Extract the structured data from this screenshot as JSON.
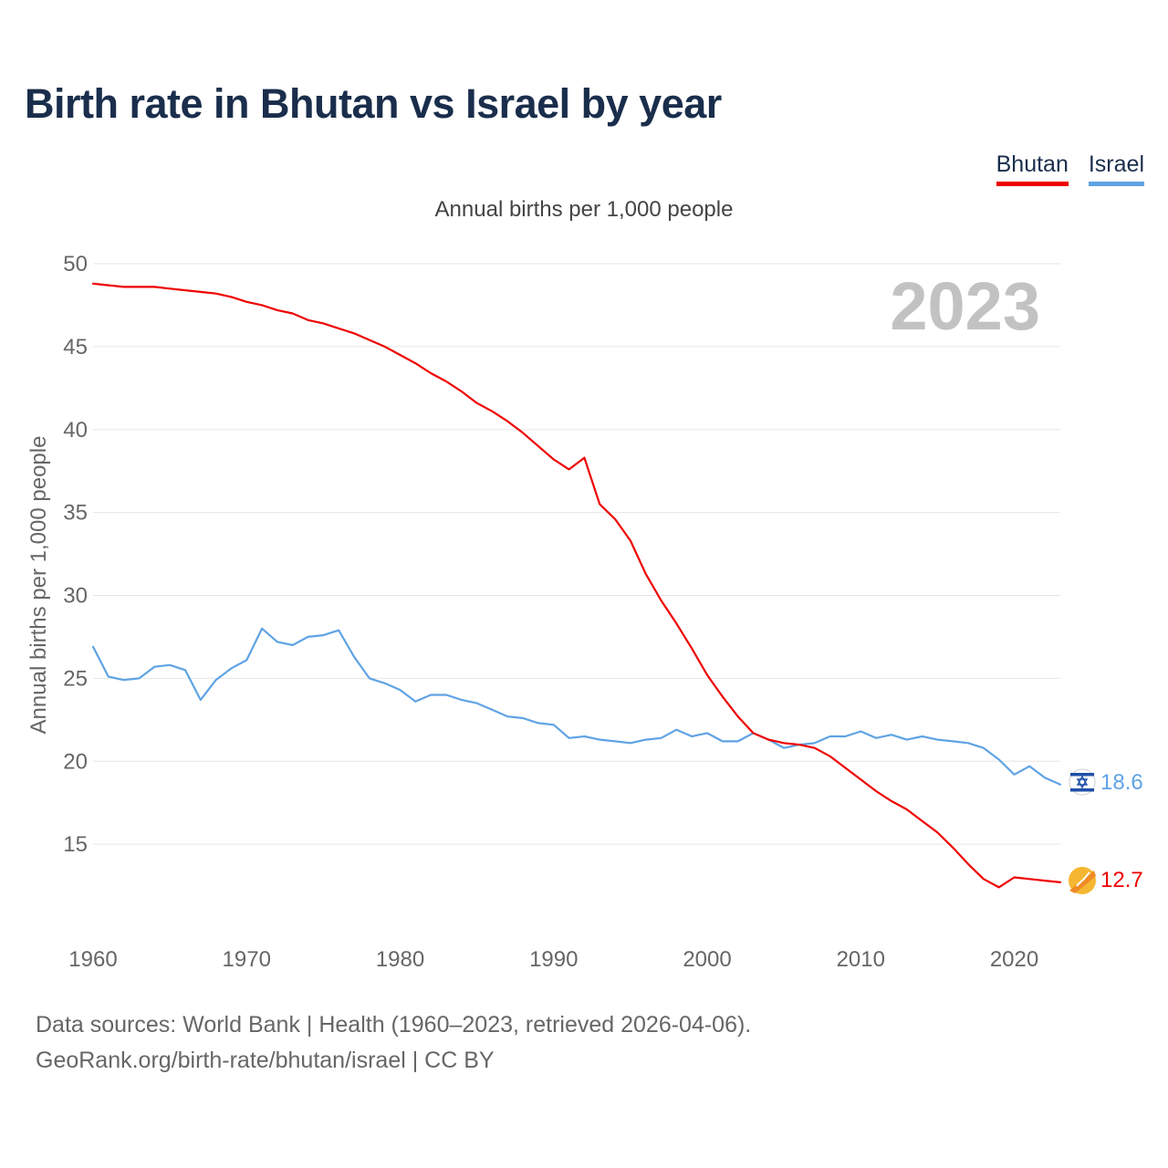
{
  "title": "Birth rate in Bhutan vs Israel by year",
  "subtitle": "Annual births per 1,000 people",
  "legend": {
    "bhutan_label": "Bhutan",
    "israel_label": "Israel"
  },
  "year_display": "2023",
  "end_labels": {
    "bhutan": "12.7",
    "israel": "18.6"
  },
  "footer": {
    "line1": "Data sources: World Bank | Health (1960–2023, retrieved 2026-04-06).",
    "line2": "GeoRank.org/birth-rate/bhutan/israel | CC BY"
  },
  "colors": {
    "bhutan": "#ee0000",
    "israel": "#5fa3e4",
    "title": "#1a2e4c",
    "grid": "#e6e6e6"
  },
  "icons": {
    "bhutan": "bhutan-flag-icon",
    "israel": "israel-flag-icon"
  },
  "chart_data": {
    "type": "line",
    "title": "Birth rate in Bhutan vs Israel by year",
    "subtitle": "Annual births per 1,000 people",
    "xlabel": "",
    "ylabel": "Annual births per 1,000 people",
    "xlim": [
      1960,
      2023
    ],
    "ylim": [
      10,
      50
    ],
    "y_ticks": [
      15,
      20,
      25,
      30,
      35,
      40,
      45,
      50
    ],
    "x_ticks": [
      1960,
      1970,
      1980,
      1990,
      2000,
      2010,
      2020
    ],
    "grid": true,
    "legend_position": "top-right",
    "x": [
      1960,
      1961,
      1962,
      1963,
      1964,
      1965,
      1966,
      1967,
      1968,
      1969,
      1970,
      1971,
      1972,
      1973,
      1974,
      1975,
      1976,
      1977,
      1978,
      1979,
      1980,
      1981,
      1982,
      1983,
      1984,
      1985,
      1986,
      1987,
      1988,
      1989,
      1990,
      1991,
      1992,
      1993,
      1994,
      1995,
      1996,
      1997,
      1998,
      1999,
      2000,
      2001,
      2002,
      2003,
      2004,
      2005,
      2006,
      2007,
      2008,
      2009,
      2010,
      2011,
      2012,
      2013,
      2014,
      2015,
      2016,
      2017,
      2018,
      2019,
      2020,
      2021,
      2022,
      2023
    ],
    "series": [
      {
        "name": "Bhutan",
        "values": [
          48.8,
          48.7,
          48.6,
          48.6,
          48.6,
          48.5,
          48.4,
          48.3,
          48.2,
          48.0,
          47.7,
          47.5,
          47.2,
          47.0,
          46.6,
          46.4,
          46.1,
          45.8,
          45.4,
          45.0,
          44.5,
          44.0,
          43.4,
          42.9,
          42.3,
          41.6,
          41.1,
          40.5,
          39.8,
          39.0,
          38.2,
          37.6,
          38.3,
          35.5,
          34.6,
          33.3,
          31.3,
          29.7,
          28.3,
          26.8,
          25.2,
          23.9,
          22.7,
          21.7,
          21.3,
          21.1,
          21.0,
          20.8,
          20.3,
          19.6,
          18.9,
          18.2,
          17.6,
          17.1,
          16.4,
          15.7,
          14.8,
          13.8,
          12.9,
          12.4,
          13.0,
          12.9,
          12.8,
          12.7
        ]
      },
      {
        "name": "Israel",
        "values": [
          26.9,
          25.1,
          24.9,
          25.0,
          25.7,
          25.8,
          25.5,
          23.7,
          24.9,
          25.6,
          26.1,
          28.0,
          27.2,
          27.0,
          27.5,
          27.6,
          27.9,
          26.3,
          25.0,
          24.7,
          24.3,
          23.6,
          24.0,
          24.0,
          23.7,
          23.5,
          23.1,
          22.7,
          22.6,
          22.3,
          22.2,
          21.4,
          21.5,
          21.3,
          21.2,
          21.1,
          21.3,
          21.4,
          21.9,
          21.5,
          21.7,
          21.2,
          21.2,
          21.7,
          21.3,
          20.8,
          21.0,
          21.1,
          21.5,
          21.5,
          21.8,
          21.4,
          21.6,
          21.3,
          21.5,
          21.3,
          21.2,
          21.1,
          20.8,
          20.1,
          19.2,
          19.7,
          19.0,
          18.6
        ]
      }
    ]
  }
}
